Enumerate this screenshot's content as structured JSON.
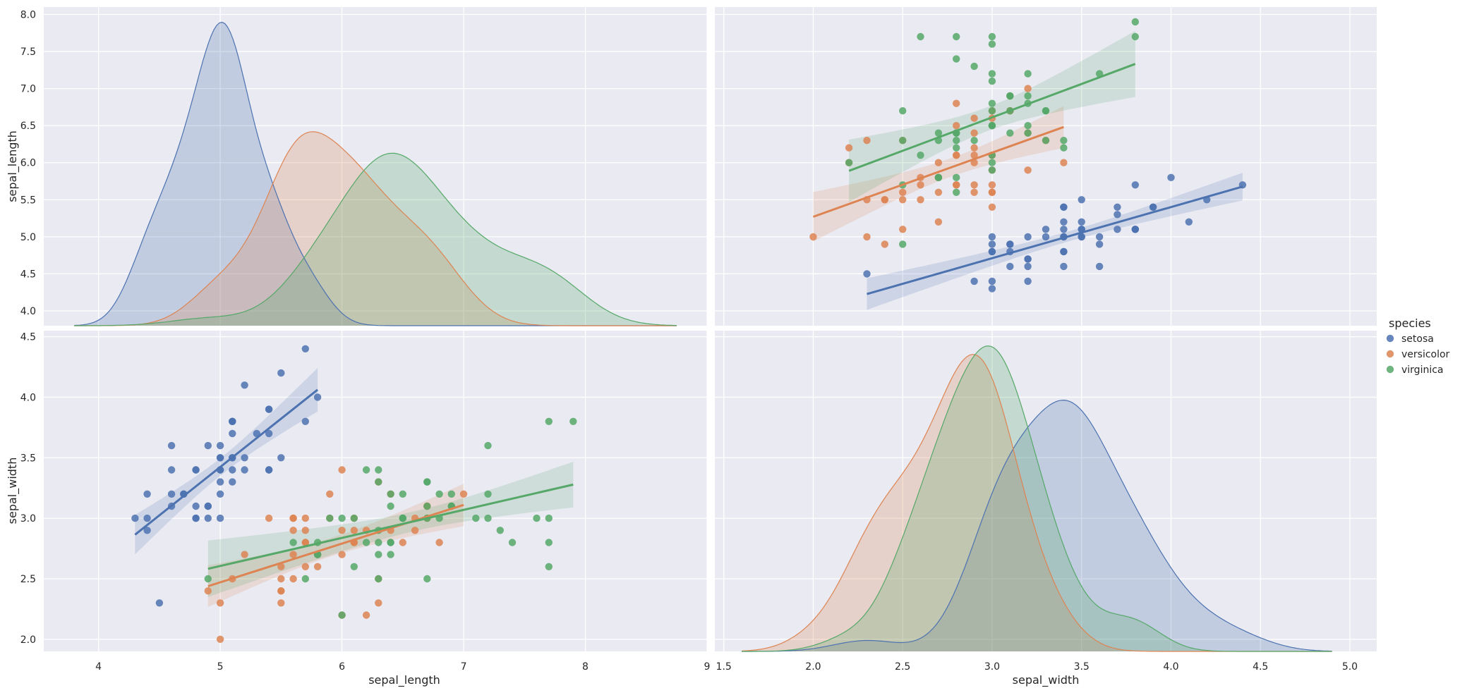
{
  "chart_data": {
    "type": "pairplot",
    "variables": [
      "sepal_length",
      "sepal_width"
    ],
    "hue_title": "species",
    "species": [
      {
        "name": "setosa",
        "color": "#4c72b0"
      },
      {
        "name": "versicolor",
        "color": "#dd8452"
      },
      {
        "name": "virginica",
        "color": "#55a868"
      }
    ],
    "axes": {
      "sepal_length": {
        "label": "sepal_length",
        "range": [
          3.55,
          9.0
        ],
        "ticks": [
          4,
          5,
          6,
          7,
          8,
          9
        ],
        "tick_labels": [
          "4",
          "5",
          "6",
          "7",
          "8",
          "9"
        ]
      },
      "sepal_width_x": {
        "label": "sepal_width",
        "range": [
          1.45,
          5.15
        ],
        "ticks": [
          1.5,
          2.0,
          2.5,
          3.0,
          3.5,
          4.0,
          4.5,
          5.0
        ],
        "tick_labels": [
          "1.5",
          "2.0",
          "2.5",
          "3.0",
          "3.5",
          "4.0",
          "4.5",
          "5.0"
        ]
      },
      "sepal_length_y": {
        "label": "sepal_length",
        "range": [
          3.8,
          8.1
        ],
        "ticks": [
          4.0,
          4.5,
          5.0,
          5.5,
          6.0,
          6.5,
          7.0,
          7.5,
          8.0
        ],
        "tick_labels": [
          "4.0",
          "4.5",
          "5.0",
          "5.5",
          "6.0",
          "6.5",
          "7.0",
          "7.5",
          "8.0"
        ]
      },
      "sepal_width_y": {
        "label": "sepal_width",
        "range": [
          1.9,
          4.55
        ],
        "ticks": [
          2.0,
          2.5,
          3.0,
          3.5,
          4.0,
          4.5
        ],
        "tick_labels": [
          "2.0",
          "2.5",
          "3.0",
          "3.5",
          "4.0",
          "4.5"
        ]
      }
    },
    "data": {
      "setosa": {
        "sepal_length": [
          5.1,
          4.9,
          4.7,
          4.6,
          5.0,
          5.4,
          4.6,
          5.0,
          4.4,
          4.9,
          5.4,
          4.8,
          4.8,
          4.3,
          5.8,
          5.7,
          5.4,
          5.1,
          5.7,
          5.1,
          5.4,
          5.1,
          4.6,
          5.1,
          4.8,
          5.0,
          5.0,
          5.2,
          5.2,
          4.7,
          4.8,
          5.4,
          5.2,
          5.5,
          4.9,
          5.0,
          5.5,
          4.9,
          4.4,
          5.1,
          5.0,
          4.5,
          4.4,
          5.0,
          5.1,
          4.8,
          5.1,
          4.6,
          5.3,
          5.0
        ],
        "sepal_width": [
          3.5,
          3.0,
          3.2,
          3.1,
          3.6,
          3.9,
          3.4,
          3.4,
          2.9,
          3.1,
          3.7,
          3.4,
          3.0,
          3.0,
          4.0,
          4.4,
          3.9,
          3.5,
          3.8,
          3.8,
          3.4,
          3.7,
          3.6,
          3.3,
          3.4,
          3.0,
          3.4,
          3.5,
          3.4,
          3.2,
          3.1,
          3.4,
          4.1,
          4.2,
          3.1,
          3.2,
          3.5,
          3.6,
          3.0,
          3.4,
          3.5,
          2.3,
          3.2,
          3.5,
          3.8,
          3.0,
          3.8,
          3.2,
          3.7,
          3.3
        ]
      },
      "versicolor": {
        "sepal_length": [
          7.0,
          6.4,
          6.9,
          5.5,
          6.5,
          5.7,
          6.3,
          4.9,
          6.6,
          5.2,
          5.0,
          5.9,
          6.0,
          6.1,
          5.6,
          6.7,
          5.6,
          5.8,
          6.2,
          5.6,
          5.9,
          6.1,
          6.3,
          6.1,
          6.4,
          6.6,
          6.8,
          6.7,
          6.0,
          5.7,
          5.5,
          5.5,
          5.8,
          6.0,
          5.4,
          6.0,
          6.7,
          6.3,
          5.6,
          5.5,
          5.5,
          6.1,
          5.8,
          5.0,
          5.6,
          5.7,
          5.7,
          6.2,
          5.1,
          5.7
        ],
        "sepal_width": [
          3.2,
          3.2,
          3.1,
          2.3,
          2.8,
          2.8,
          3.3,
          2.4,
          2.9,
          2.7,
          2.0,
          3.0,
          2.2,
          2.9,
          2.9,
          3.1,
          3.0,
          2.7,
          2.2,
          2.5,
          3.2,
          2.8,
          2.5,
          2.8,
          2.9,
          3.0,
          2.8,
          3.0,
          2.9,
          2.6,
          2.4,
          2.4,
          2.7,
          2.7,
          3.0,
          3.4,
          3.1,
          2.3,
          3.0,
          2.5,
          2.6,
          3.0,
          2.6,
          2.3,
          2.7,
          3.0,
          2.9,
          2.9,
          2.5,
          2.8
        ]
      },
      "virginica": {
        "sepal_length": [
          6.3,
          5.8,
          7.1,
          6.3,
          6.5,
          7.6,
          4.9,
          7.3,
          6.7,
          7.2,
          6.5,
          6.4,
          6.8,
          5.7,
          5.8,
          6.4,
          6.5,
          7.7,
          7.7,
          6.0,
          6.9,
          5.6,
          7.7,
          6.3,
          6.7,
          7.2,
          6.2,
          6.1,
          6.4,
          7.2,
          7.4,
          7.9,
          6.4,
          6.3,
          6.1,
          7.7,
          6.3,
          6.4,
          6.0,
          6.9,
          6.7,
          6.9,
          5.8,
          6.8,
          6.7,
          6.7,
          6.3,
          6.5,
          6.2,
          5.9
        ],
        "sepal_width": [
          3.3,
          2.7,
          3.0,
          2.9,
          3.0,
          3.0,
          2.5,
          2.9,
          2.5,
          3.6,
          3.2,
          2.7,
          3.0,
          2.5,
          2.8,
          3.2,
          3.0,
          3.8,
          2.6,
          2.2,
          3.2,
          2.8,
          2.8,
          2.7,
          3.3,
          3.2,
          2.8,
          3.0,
          2.8,
          3.0,
          2.8,
          3.8,
          2.8,
          2.8,
          2.6,
          3.0,
          3.4,
          3.1,
          3.0,
          3.1,
          3.1,
          3.1,
          2.7,
          3.2,
          3.3,
          3.0,
          2.5,
          3.0,
          3.4,
          3.0
        ]
      }
    }
  }
}
